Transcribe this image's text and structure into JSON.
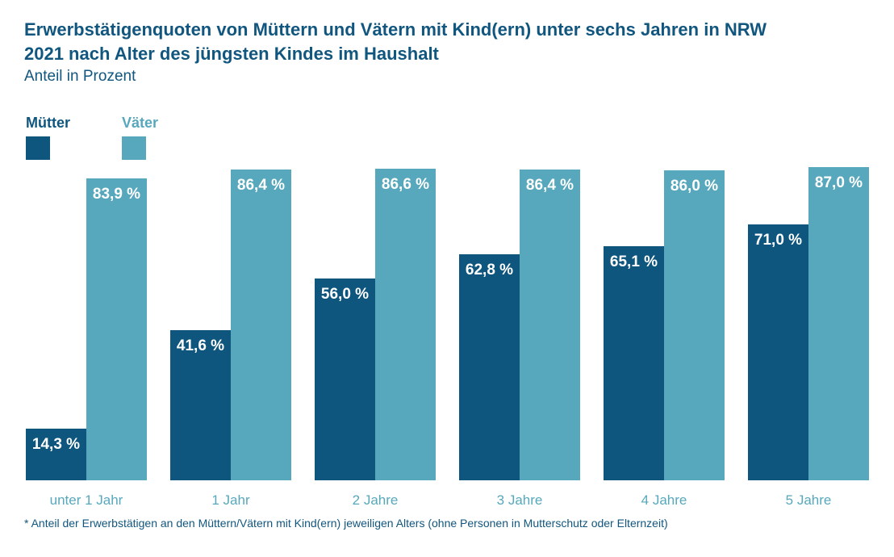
{
  "colors": {
    "muetter_dark_blue": "#0F567F",
    "vaeter_teal": "#57A8BC",
    "title_text": "#11567E",
    "bar_value_text": "#FFFFFF",
    "background": "#FFFFFF"
  },
  "title": {
    "lines": [
      "Erwerbstätigenquoten von Müttern und Vätern mit Kind(ern) unter sechs Jahren in NRW",
      "2021 nach Alter des jüngsten Kindes im Haushalt"
    ],
    "subtitle": "Anteil in Prozent"
  },
  "legend": [
    {
      "id": "muetter",
      "label": "Mütter",
      "color": "#0F567F"
    },
    {
      "id": "vaeter",
      "label": "Väter",
      "color": "#57A8BC"
    }
  ],
  "chart_data": {
    "type": "bar",
    "title": "Erwerbstätigenquoten von Müttern und Vätern mit Kind(ern) unter sechs Jahren in NRW 2021 nach Alter des jüngsten Kindes im Haushalt",
    "subtitle": "Anteil in Prozent",
    "categories": [
      "unter 1 Jahr",
      "1 Jahr",
      "2 Jahre",
      "3 Jahre",
      "4 Jahre",
      "5 Jahre"
    ],
    "series": [
      {
        "id": "muetter",
        "name": "Mütter",
        "color": "#0F567F",
        "values": [
          14.3,
          41.6,
          56.0,
          62.8,
          65.1,
          71.0
        ],
        "labels": [
          "14,3 %",
          "41,6 %",
          "56,0 %",
          "62,8 %",
          "65,1 %",
          "71,0 %"
        ]
      },
      {
        "id": "vaeter",
        "name": "Väter",
        "color": "#57A8BC",
        "values": [
          83.9,
          86.4,
          86.6,
          86.4,
          86.0,
          87.0
        ],
        "labels": [
          "83,9 %",
          "86,4 %",
          "86,6 %",
          "86,4 %",
          "86,0 %",
          "87,0 %"
        ]
      }
    ],
    "xlabel": "",
    "ylabel": "Anteil in Prozent",
    "ylim": [
      0,
      100
    ],
    "grid": false,
    "axis_lines": false,
    "legend_position": "top-left",
    "value_labels": "inside-top-centered"
  },
  "footnote": "* Anteil der Erwerbstätigen an den Müttern/Vätern mit Kind(ern) jeweiligen Alters (ohne Personen in Mutterschutz oder Elternzeit)"
}
